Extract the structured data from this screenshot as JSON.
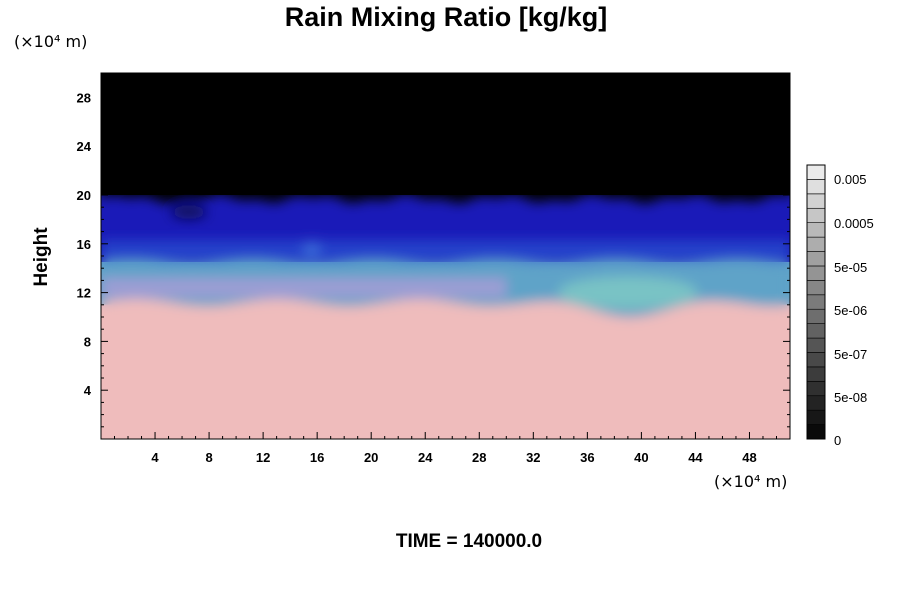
{
  "chart_data": {
    "type": "heatmap",
    "title": "Rain Mixing Ratio [kg/kg]",
    "ylabel": "Height",
    "xlabel": "",
    "y_unit": "(×10⁴ m)",
    "x_unit": "(×10⁴ m)",
    "xlim": [
      0,
      51
    ],
    "ylim": [
      0,
      30
    ],
    "x_ticks": [
      "4",
      "8",
      "12",
      "16",
      "20",
      "24",
      "28",
      "32",
      "36",
      "40",
      "44",
      "48"
    ],
    "y_ticks": [
      "4",
      "8",
      "12",
      "16",
      "20",
      "24",
      "28"
    ],
    "colorbar": {
      "labels": [
        "0.005",
        "0.0005",
        "5e-05",
        "5e-06",
        "5e-07",
        "5e-08",
        "0"
      ],
      "levels": [
        "0",
        "5e-08",
        "5e-07",
        "5e-06",
        "5e-05",
        "0.0005",
        "0.005"
      ]
    },
    "regions": [
      {
        "name": "upper zero region",
        "y_range": [
          20,
          30
        ],
        "color": "#000000"
      },
      {
        "name": "dark blue layer",
        "y_range": [
          14.5,
          20
        ],
        "color": "#1a1ab8"
      },
      {
        "name": "cyan transition layer",
        "y_range": [
          11,
          14.5
        ],
        "color": "#5fa3c8"
      },
      {
        "name": "lower pink region",
        "y_range": [
          0,
          11
        ],
        "color": "#efbcbc"
      }
    ]
  },
  "footer": {
    "time_label": "TIME = 140000.0"
  },
  "colors": {
    "background": "#ffffff",
    "top_black": "#000000",
    "deep_blue": "#1a1ab8",
    "mid_blue": "#2a50d0",
    "cyan": "#5fa3c8",
    "teal": "#7ec9c4",
    "lavender": "#b79ad8",
    "pink": "#efbcbc"
  }
}
